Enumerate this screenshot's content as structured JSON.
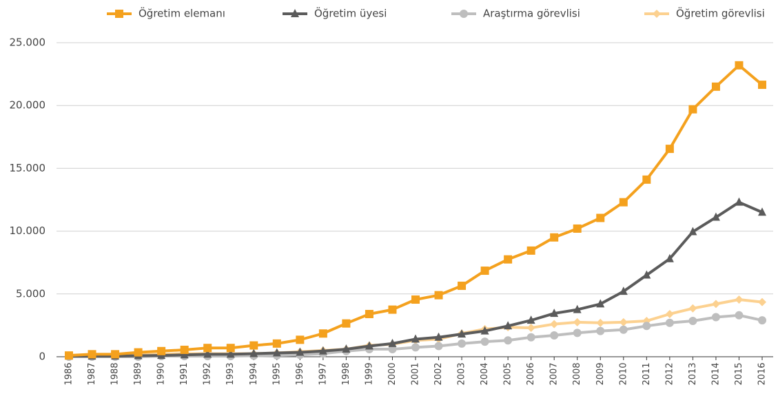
{
  "chart_data": {
    "type": "line",
    "categories": [
      "1986",
      "1987",
      "1988",
      "1989",
      "1990",
      "1991",
      "1992",
      "1993",
      "1994",
      "1995",
      "1996",
      "1997",
      "1998",
      "1999",
      "2000",
      "2001",
      "2002",
      "2003",
      "2004",
      "2005",
      "2006",
      "2007",
      "2008",
      "2009",
      "2010",
      "2011",
      "2012",
      "2013",
      "2014",
      "2015",
      "2016"
    ],
    "series": [
      {
        "name": "Öğretim elemanı",
        "color": "#f4a11e",
        "marker": "square",
        "values": [
          100,
          200,
          200,
          350,
          450,
          550,
          700,
          700,
          900,
          1050,
          1350,
          1850,
          2650,
          3400,
          3750,
          4550,
          4900,
          5650,
          6850,
          7750,
          8450,
          9500,
          10200,
          11050,
          12300,
          14100,
          16550,
          19700,
          21500,
          23200,
          21650
        ]
      },
      {
        "name": "Öğretim üyesi",
        "color": "#5b5b5b",
        "marker": "triangle",
        "values": [
          50,
          50,
          50,
          80,
          100,
          150,
          200,
          200,
          250,
          300,
          350,
          450,
          600,
          850,
          1050,
          1400,
          1550,
          1800,
          2050,
          2450,
          2900,
          3450,
          3750,
          4200,
          5200,
          6500,
          7800,
          9950,
          11100,
          12300,
          11500
        ]
      },
      {
        "name": "Araştırma görevlisi",
        "color": "#bebebe",
        "marker": "circle",
        "values": [
          0,
          0,
          0,
          0,
          50,
          50,
          50,
          50,
          80,
          100,
          150,
          250,
          450,
          600,
          600,
          750,
          850,
          1050,
          1200,
          1300,
          1550,
          1700,
          1900,
          2050,
          2150,
          2450,
          2700,
          2850,
          3150,
          3300,
          2900
        ]
      },
      {
        "name": "Öğretim görevlisi",
        "color": "#fcd190",
        "marker": "diamond",
        "values": [
          50,
          100,
          100,
          150,
          200,
          250,
          250,
          250,
          250,
          300,
          400,
          500,
          600,
          900,
          1000,
          1300,
          1400,
          1850,
          2200,
          2350,
          2300,
          2600,
          2750,
          2700,
          2750,
          2850,
          3400,
          3850,
          4200,
          4550,
          4350
        ]
      }
    ],
    "ylim": [
      0,
      25000
    ],
    "yticks": [
      {
        "value": 0,
        "label": "0"
      },
      {
        "value": 5000,
        "label": "5.000"
      },
      {
        "value": 10000,
        "label": "10.000"
      },
      {
        "value": 15000,
        "label": "15.000"
      },
      {
        "value": 20000,
        "label": "20.000"
      },
      {
        "value": 25000,
        "label": "25.000"
      }
    ],
    "grid": true,
    "legend": "top"
  }
}
